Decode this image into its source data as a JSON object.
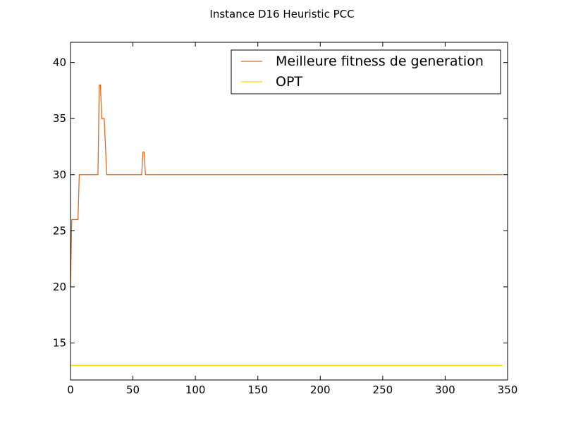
{
  "chart_data": {
    "type": "line",
    "title": "Instance D16 Heuristic PCC",
    "xlabel": "",
    "ylabel": "",
    "xlim": [
      0,
      350
    ],
    "ylim": [
      11.7,
      41.8
    ],
    "x_ticks": [
      0,
      50,
      100,
      150,
      200,
      250,
      300,
      350
    ],
    "y_ticks": [
      15,
      20,
      25,
      30,
      35,
      40
    ],
    "grid": false,
    "legend_position": "top-right",
    "series": [
      {
        "name": "Meilleure fitness de generation",
        "color": "#e06a1e",
        "points": [
          [
            0,
            20
          ],
          [
            1,
            26
          ],
          [
            6,
            26
          ],
          [
            7,
            30
          ],
          [
            22,
            30
          ],
          [
            23,
            38
          ],
          [
            24,
            38
          ],
          [
            25,
            35
          ],
          [
            27,
            35
          ],
          [
            29,
            30
          ],
          [
            57,
            30
          ],
          [
            58,
            32
          ],
          [
            59,
            32
          ],
          [
            60,
            30
          ],
          [
            346,
            30
          ]
        ]
      },
      {
        "name": "OPT",
        "color": "#ffd800",
        "points": [
          [
            0,
            13
          ],
          [
            346,
            13
          ]
        ]
      }
    ]
  }
}
